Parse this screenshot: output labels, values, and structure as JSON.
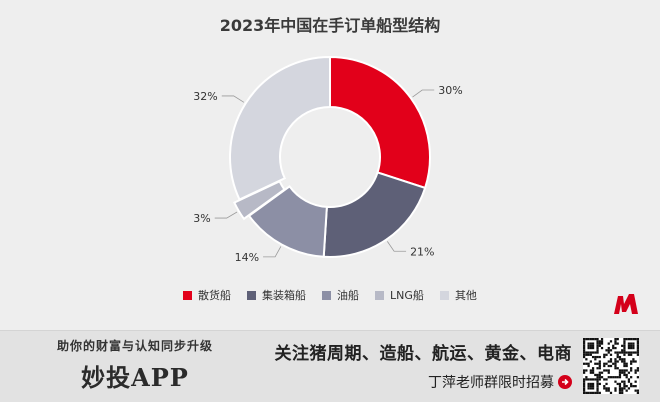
{
  "chart_data": {
    "type": "pie",
    "title": "2023年中国在手订单船型结构",
    "categories": [
      "散货船",
      "集装箱船",
      "油船",
      "LNG船",
      "其他"
    ],
    "values": [
      30,
      21,
      14,
      3,
      32
    ],
    "labels": [
      "30%",
      "21%",
      "14%",
      "3%",
      "32%"
    ],
    "colors": [
      "#e2001a",
      "#5e6077",
      "#8c8fa5",
      "#b7b9c6",
      "#d4d6de"
    ],
    "donut": true,
    "legend_position": "bottom"
  },
  "footer": {
    "tagline": "助你的财富与认知同步升级",
    "brand": "妙投APP",
    "topics": "关注猪周期、造船、航运、黄金、电商",
    "cta": "丁萍老师群限时招募"
  },
  "icons": {
    "logo": "m-brand-logo",
    "arrow": "right-arrow-circle-icon",
    "qr": "qr-code"
  }
}
